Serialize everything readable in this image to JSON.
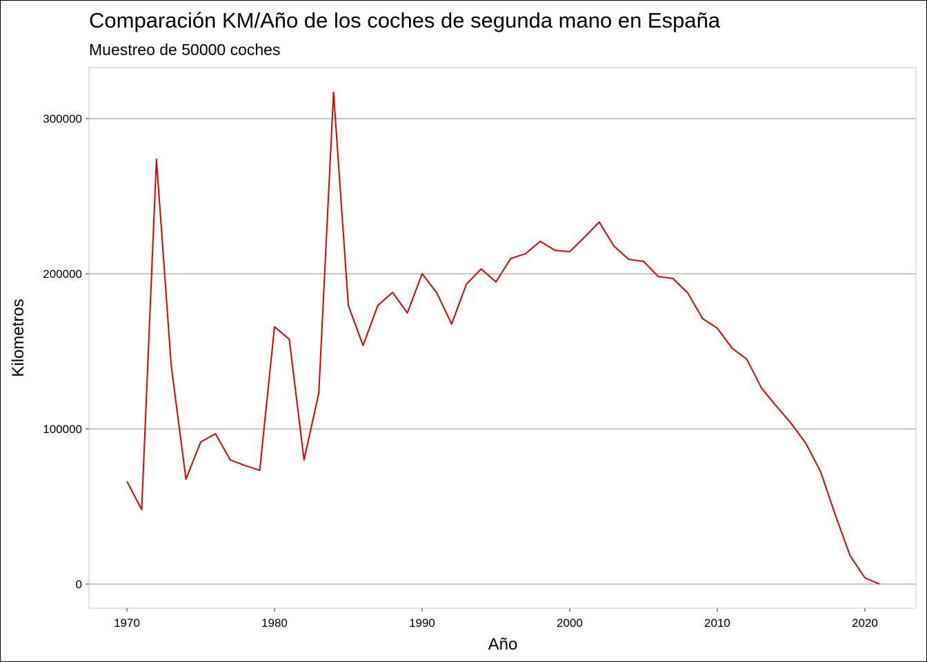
{
  "chart_data": {
    "type": "line",
    "title": "Comparación KM/Año de los coches de segunda mano en España",
    "subtitle": "Muestreo de 50000 coches",
    "x_label": "Año",
    "y_label": "Kilometros",
    "x": [
      1970,
      1971,
      1972,
      1973,
      1974,
      1975,
      1976,
      1977,
      1978,
      1979,
      1980,
      1981,
      1982,
      1983,
      1984,
      1985,
      1986,
      1987,
      1988,
      1989,
      1990,
      1991,
      1992,
      1993,
      1994,
      1995,
      1996,
      1997,
      1998,
      1999,
      2000,
      2001,
      2002,
      2003,
      2004,
      2005,
      2006,
      2007,
      2008,
      2009,
      2010,
      2011,
      2012,
      2013,
      2014,
      2015,
      2016,
      2017,
      2018,
      2019,
      2020,
      2021
    ],
    "series": [
      {
        "name": "Kilometros",
        "color": "#e00000",
        "values": [
          66200,
          48000,
          273800,
          140900,
          67600,
          91600,
          96900,
          80000,
          76400,
          73300,
          165800,
          157800,
          80000,
          123100,
          316900,
          179600,
          153800,
          179600,
          188000,
          174700,
          200000,
          187600,
          167600,
          193300,
          203100,
          194700,
          209800,
          212900,
          220900,
          215100,
          214200,
          223600,
          233300,
          217800,
          209300,
          208000,
          198200,
          196900,
          187600,
          171100,
          164900,
          152000,
          144900,
          126200,
          114700,
          103600,
          90700,
          72400,
          44400,
          18200,
          4000,
          0
        ]
      }
    ],
    "xlim": [
      1967.43,
      2023.46
    ],
    "ylim": [
      -15556,
      332889
    ],
    "xticks": [
      1970,
      1980,
      1990,
      2000,
      2010,
      2020
    ],
    "yticks": [
      0,
      100000,
      200000,
      300000
    ],
    "grid": true
  }
}
